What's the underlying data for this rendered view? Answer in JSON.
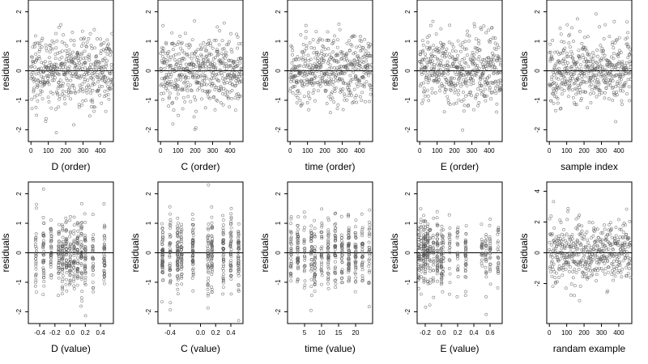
{
  "chart_data": [
    {
      "type": "scatter",
      "xlabel": "D (order)",
      "ylabel": "residuals",
      "xkind": "index",
      "xlim": [
        -15,
        475
      ],
      "ylim": [
        -2.4,
        2.4
      ],
      "xticks": [
        0,
        100,
        200,
        300,
        400
      ],
      "xtick_labels": [
        "0",
        "100",
        "200",
        "300",
        "400"
      ],
      "yticks": [
        -2,
        -1,
        0,
        1,
        2
      ],
      "ytick_labels": [
        "-2",
        "-1",
        "0",
        "1",
        "2"
      ],
      "hline": 0,
      "n_points": 470
    },
    {
      "type": "scatter",
      "xlabel": "C (order)",
      "ylabel": "residuals",
      "xkind": "index",
      "xlim": [
        -15,
        475
      ],
      "ylim": [
        -2.4,
        2.4
      ],
      "xticks": [
        0,
        100,
        200,
        300,
        400
      ],
      "xtick_labels": [
        "0",
        "100",
        "200",
        "300",
        "400"
      ],
      "yticks": [
        -2,
        -1,
        0,
        1,
        2
      ],
      "ytick_labels": [
        "-2",
        "-1",
        "0",
        "1",
        "2"
      ],
      "hline": 0,
      "n_points": 470
    },
    {
      "type": "scatter",
      "xlabel": "time (order)",
      "ylabel": "residuals",
      "xkind": "index",
      "xlim": [
        -15,
        475
      ],
      "ylim": [
        -2.4,
        2.4
      ],
      "xticks": [
        0,
        100,
        200,
        300,
        400
      ],
      "xtick_labels": [
        "0",
        "100",
        "200",
        "300",
        "400"
      ],
      "yticks": [
        -2,
        -1,
        0,
        1,
        2
      ],
      "ytick_labels": [
        "-2",
        "-1",
        "0",
        "1",
        "2"
      ],
      "hline": 0,
      "n_points": 470
    },
    {
      "type": "scatter",
      "xlabel": "E (order)",
      "ylabel": "residuals",
      "xkind": "index",
      "xlim": [
        -15,
        475
      ],
      "ylim": [
        -2.4,
        2.4
      ],
      "xticks": [
        0,
        100,
        200,
        300,
        400
      ],
      "xtick_labels": [
        "0",
        "100",
        "200",
        "300",
        "400"
      ],
      "yticks": [
        -2,
        -1,
        0,
        1,
        2
      ],
      "ytick_labels": [
        "-2",
        "-1",
        "0",
        "1",
        "2"
      ],
      "hline": 0,
      "n_points": 470
    },
    {
      "type": "scatter",
      "xlabel": "sample index",
      "ylabel": "residuals",
      "xkind": "index",
      "xlim": [
        -15,
        475
      ],
      "ylim": [
        -2.4,
        2.4
      ],
      "xticks": [
        0,
        100,
        200,
        300,
        400
      ],
      "xtick_labels": [
        "0",
        "100",
        "200",
        "300",
        "400"
      ],
      "yticks": [
        -2,
        -1,
        0,
        1,
        2
      ],
      "ytick_labels": [
        "-2",
        "-1",
        "0",
        "1",
        "2"
      ],
      "hline": 0,
      "n_points": 470
    },
    {
      "type": "scatter",
      "xlabel": "D (value)",
      "ylabel": "residuals",
      "xkind": "discrete",
      "x_levels": [
        -0.45,
        -0.35,
        -0.25,
        -0.15,
        -0.1,
        -0.05,
        0.0,
        0.05,
        0.1,
        0.15,
        0.2,
        0.3,
        0.45
      ],
      "xlim": [
        -0.55,
        0.57
      ],
      "ylim": [
        -2.4,
        2.4
      ],
      "xticks": [
        -0.4,
        -0.2,
        0.0,
        0.2,
        0.4
      ],
      "xtick_labels": [
        "-0.4",
        "-0.2",
        "0.0",
        "0.2",
        "0.4"
      ],
      "yticks": [
        -2,
        -1,
        0,
        1,
        2
      ],
      "ytick_labels": [
        "-2",
        "-1",
        "0",
        "1",
        "2"
      ],
      "hline": 0,
      "n_points": 470
    },
    {
      "type": "scatter",
      "xlabel": "C (value)",
      "ylabel": "residuals",
      "xkind": "discrete",
      "x_levels": [
        -0.5,
        -0.4,
        -0.3,
        -0.25,
        -0.1,
        0.1,
        0.15,
        0.3,
        0.4,
        0.5
      ],
      "xlim": [
        -0.56,
        0.56
      ],
      "ylim": [
        -2.4,
        2.4
      ],
      "xticks": [
        -0.4,
        0.0,
        0.2,
        0.4
      ],
      "xtick_labels": [
        "-0.4",
        "0.0",
        "0.2",
        "0.4"
      ],
      "yticks": [
        -2,
        -1,
        0,
        1,
        2
      ],
      "ytick_labels": [
        "-2",
        "-1",
        "0",
        "1",
        "2"
      ],
      "hline": 0,
      "n_points": 470
    },
    {
      "type": "scatter",
      "xlabel": "time (value)",
      "ylabel": "residuals",
      "xkind": "discrete",
      "x_levels": [
        1,
        3,
        5,
        7,
        8,
        10,
        12,
        14,
        16,
        18,
        20,
        22,
        24
      ],
      "xlim": [
        0,
        25
      ],
      "ylim": [
        -2.4,
        2.4
      ],
      "xticks": [
        5,
        10,
        15,
        20
      ],
      "xtick_labels": [
        "5",
        "10",
        "15",
        "20"
      ],
      "yticks": [
        -2,
        -1,
        0,
        1,
        2
      ],
      "ytick_labels": [
        "-2",
        "-1",
        "0",
        "1",
        "2"
      ],
      "hline": 0,
      "n_points": 470
    },
    {
      "type": "scatter",
      "xlabel": "E (value)",
      "ylabel": "residuals",
      "xkind": "discrete",
      "x_levels": [
        -0.28,
        -0.25,
        -0.22,
        -0.2,
        -0.17,
        -0.14,
        -0.1,
        -0.05,
        0.0,
        0.02,
        0.1,
        0.2,
        0.3,
        0.5,
        0.55,
        0.6,
        0.7
      ],
      "xlim": [
        -0.3,
        0.75
      ],
      "ylim": [
        -2.4,
        2.4
      ],
      "xticks": [
        -0.2,
        0.0,
        0.2,
        0.4,
        0.6
      ],
      "xtick_labels": [
        "-0.2",
        "0.0",
        "0.2",
        "0.4",
        "0.6"
      ],
      "yticks": [
        -2,
        -1,
        0,
        1,
        2
      ],
      "ytick_labels": [
        "-2",
        "-1",
        "0",
        "1",
        "2"
      ],
      "hline": 0,
      "n_points": 470
    },
    {
      "type": "scatter",
      "xlabel": "randam example",
      "ylabel": "residuals",
      "xkind": "index",
      "xlim": [
        -15,
        475
      ],
      "ylim": [
        -4.6,
        4.6
      ],
      "xticks": [
        0,
        100,
        200,
        300,
        400
      ],
      "xtick_labels": [
        "0",
        "100",
        "200",
        "300",
        "400"
      ],
      "yticks": [
        -2,
        0,
        2,
        4
      ],
      "ytick_labels": [
        "-2",
        "0",
        "2",
        "4"
      ],
      "hline": 0,
      "n_points": 470
    }
  ]
}
